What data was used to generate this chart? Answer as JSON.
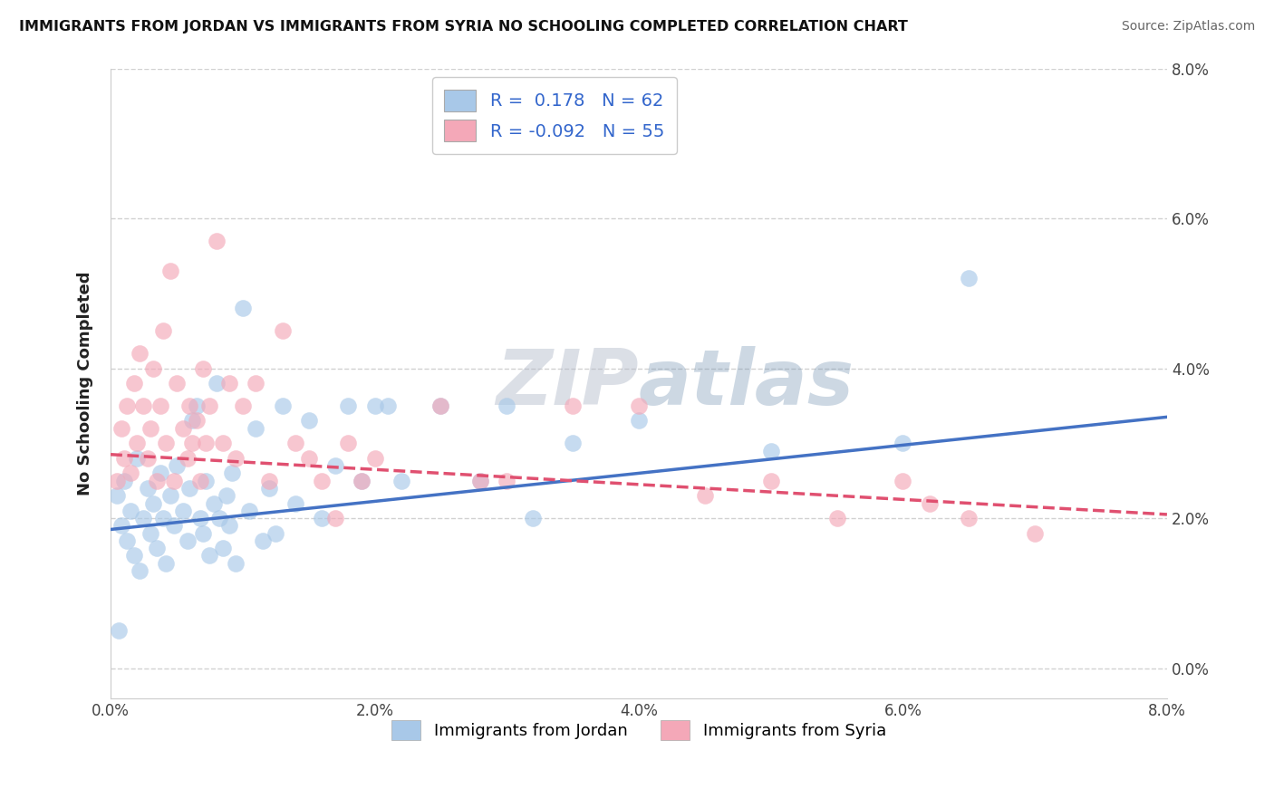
{
  "title": "IMMIGRANTS FROM JORDAN VS IMMIGRANTS FROM SYRIA NO SCHOOLING COMPLETED CORRELATION CHART",
  "source": "Source: ZipAtlas.com",
  "ylabel": "No Schooling Completed",
  "xlim": [
    0.0,
    8.0
  ],
  "ylim": [
    -0.3,
    8.0
  ],
  "ytick_vals": [
    0.0,
    2.0,
    4.0,
    6.0,
    8.0
  ],
  "xtick_vals": [
    0.0,
    2.0,
    4.0,
    6.0,
    8.0
  ],
  "legend_jordan_r": "0.178",
  "legend_jordan_n": "62",
  "legend_syria_r": "-0.092",
  "legend_syria_n": "55",
  "color_jordan": "#a8c8e8",
  "color_syria": "#f4a8b8",
  "line_jordan": "#4472c4",
  "line_syria": "#e05070",
  "jordan_points": [
    [
      0.05,
      2.3
    ],
    [
      0.08,
      1.9
    ],
    [
      0.1,
      2.5
    ],
    [
      0.12,
      1.7
    ],
    [
      0.15,
      2.1
    ],
    [
      0.18,
      1.5
    ],
    [
      0.2,
      2.8
    ],
    [
      0.22,
      1.3
    ],
    [
      0.25,
      2.0
    ],
    [
      0.28,
      2.4
    ],
    [
      0.3,
      1.8
    ],
    [
      0.32,
      2.2
    ],
    [
      0.35,
      1.6
    ],
    [
      0.38,
      2.6
    ],
    [
      0.4,
      2.0
    ],
    [
      0.42,
      1.4
    ],
    [
      0.45,
      2.3
    ],
    [
      0.48,
      1.9
    ],
    [
      0.5,
      2.7
    ],
    [
      0.55,
      2.1
    ],
    [
      0.58,
      1.7
    ],
    [
      0.6,
      2.4
    ],
    [
      0.62,
      3.3
    ],
    [
      0.65,
      3.5
    ],
    [
      0.68,
      2.0
    ],
    [
      0.7,
      1.8
    ],
    [
      0.72,
      2.5
    ],
    [
      0.75,
      1.5
    ],
    [
      0.78,
      2.2
    ],
    [
      0.8,
      3.8
    ],
    [
      0.82,
      2.0
    ],
    [
      0.85,
      1.6
    ],
    [
      0.88,
      2.3
    ],
    [
      0.9,
      1.9
    ],
    [
      0.92,
      2.6
    ],
    [
      0.95,
      1.4
    ],
    [
      1.0,
      4.8
    ],
    [
      1.05,
      2.1
    ],
    [
      1.1,
      3.2
    ],
    [
      1.15,
      1.7
    ],
    [
      1.2,
      2.4
    ],
    [
      1.25,
      1.8
    ],
    [
      1.3,
      3.5
    ],
    [
      1.4,
      2.2
    ],
    [
      1.5,
      3.3
    ],
    [
      1.6,
      2.0
    ],
    [
      1.7,
      2.7
    ],
    [
      1.8,
      3.5
    ],
    [
      1.9,
      2.5
    ],
    [
      2.0,
      3.5
    ],
    [
      2.1,
      3.5
    ],
    [
      2.2,
      2.5
    ],
    [
      2.5,
      3.5
    ],
    [
      2.8,
      2.5
    ],
    [
      3.0,
      3.5
    ],
    [
      3.2,
      2.0
    ],
    [
      3.5,
      3.0
    ],
    [
      4.0,
      3.3
    ],
    [
      5.0,
      2.9
    ],
    [
      6.0,
      3.0
    ],
    [
      6.5,
      5.2
    ],
    [
      0.06,
      0.5
    ]
  ],
  "syria_points": [
    [
      0.05,
      2.5
    ],
    [
      0.08,
      3.2
    ],
    [
      0.1,
      2.8
    ],
    [
      0.12,
      3.5
    ],
    [
      0.15,
      2.6
    ],
    [
      0.18,
      3.8
    ],
    [
      0.2,
      3.0
    ],
    [
      0.22,
      4.2
    ],
    [
      0.25,
      3.5
    ],
    [
      0.28,
      2.8
    ],
    [
      0.3,
      3.2
    ],
    [
      0.32,
      4.0
    ],
    [
      0.35,
      2.5
    ],
    [
      0.38,
      3.5
    ],
    [
      0.4,
      4.5
    ],
    [
      0.42,
      3.0
    ],
    [
      0.45,
      5.3
    ],
    [
      0.48,
      2.5
    ],
    [
      0.5,
      3.8
    ],
    [
      0.55,
      3.2
    ],
    [
      0.58,
      2.8
    ],
    [
      0.6,
      3.5
    ],
    [
      0.62,
      3.0
    ],
    [
      0.65,
      3.3
    ],
    [
      0.68,
      2.5
    ],
    [
      0.7,
      4.0
    ],
    [
      0.72,
      3.0
    ],
    [
      0.75,
      3.5
    ],
    [
      0.8,
      5.7
    ],
    [
      0.85,
      3.0
    ],
    [
      0.9,
      3.8
    ],
    [
      0.95,
      2.8
    ],
    [
      1.0,
      3.5
    ],
    [
      1.1,
      3.8
    ],
    [
      1.2,
      2.5
    ],
    [
      1.3,
      4.5
    ],
    [
      1.4,
      3.0
    ],
    [
      1.5,
      2.8
    ],
    [
      1.6,
      2.5
    ],
    [
      1.7,
      2.0
    ],
    [
      1.8,
      3.0
    ],
    [
      1.9,
      2.5
    ],
    [
      2.0,
      2.8
    ],
    [
      2.5,
      3.5
    ],
    [
      2.8,
      2.5
    ],
    [
      3.0,
      2.5
    ],
    [
      3.5,
      3.5
    ],
    [
      4.0,
      3.5
    ],
    [
      4.5,
      2.3
    ],
    [
      5.0,
      2.5
    ],
    [
      5.5,
      2.0
    ],
    [
      6.0,
      2.5
    ],
    [
      6.2,
      2.2
    ],
    [
      6.5,
      2.0
    ],
    [
      7.0,
      1.8
    ]
  ]
}
